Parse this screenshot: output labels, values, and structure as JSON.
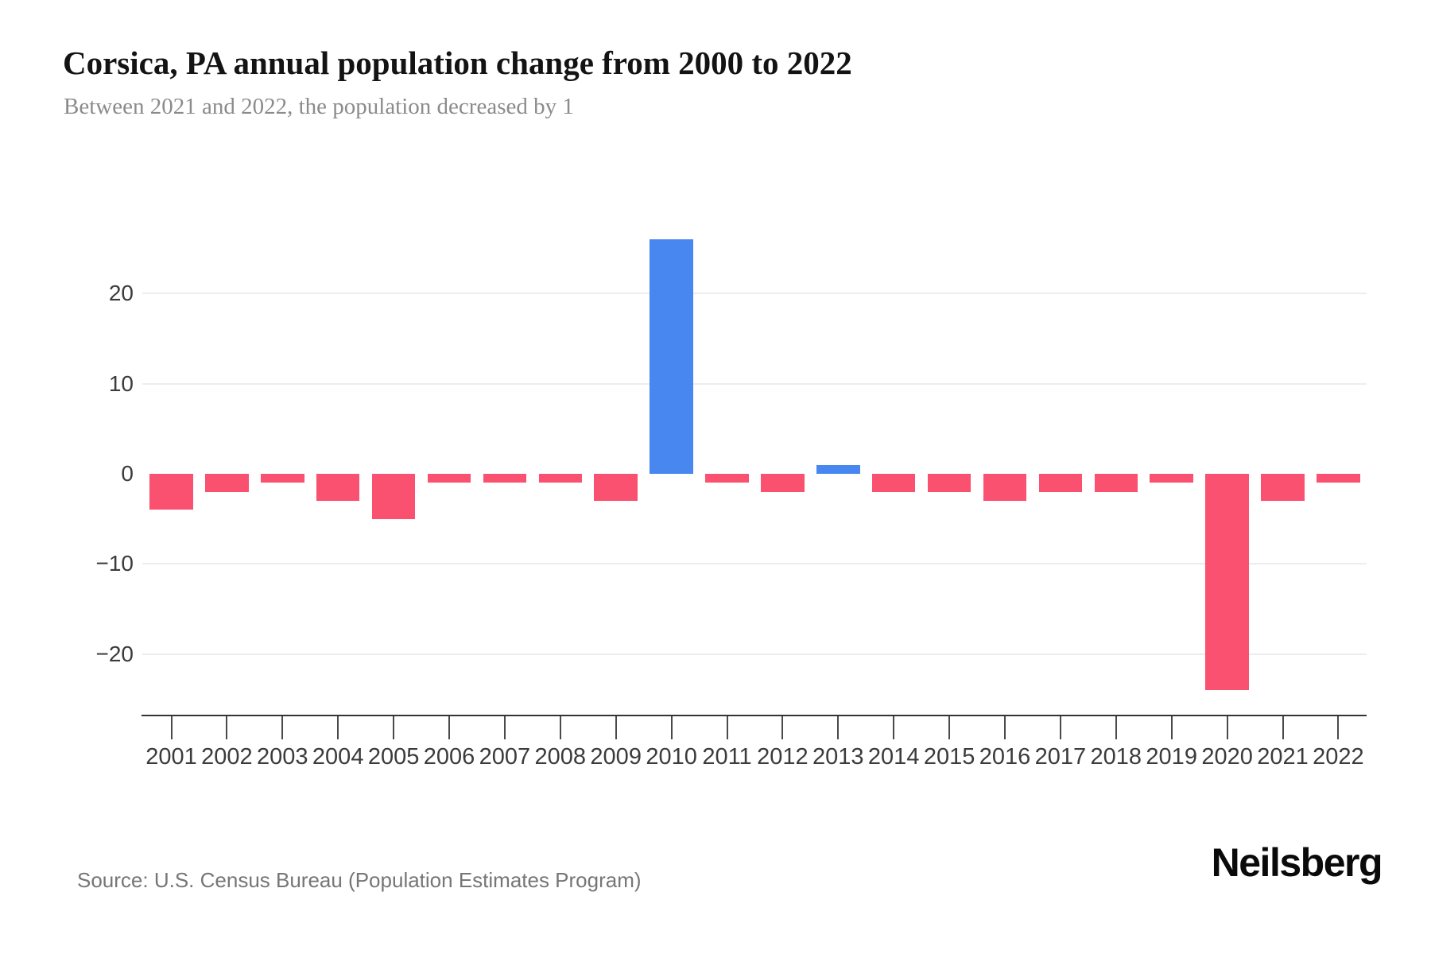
{
  "header": {
    "title": "Corsica, PA annual population change from 2000 to 2022",
    "subtitle": "Between 2021 and 2022, the population decreased by 1"
  },
  "footer": {
    "source": "Source: U.S. Census Bureau (Population Estimates Program)",
    "brand": "Neilsberg"
  },
  "chart_data": {
    "type": "bar",
    "title": "Corsica, PA annual population change from 2000 to 2022",
    "subtitle": "Between 2021 and 2022, the population decreased by 1",
    "categories": [
      "2001",
      "2002",
      "2003",
      "2004",
      "2005",
      "2006",
      "2007",
      "2008",
      "2009",
      "2010",
      "2011",
      "2012",
      "2013",
      "2014",
      "2015",
      "2016",
      "2017",
      "2018",
      "2019",
      "2020",
      "2021",
      "2022"
    ],
    "values": [
      -4,
      -2,
      -1,
      -3,
      -5,
      -1,
      -1,
      -1,
      -3,
      26,
      -1,
      -2,
      1,
      -2,
      -2,
      -3,
      -2,
      -2,
      -1,
      -24,
      -3,
      -1
    ],
    "xlabel": "",
    "ylabel": "",
    "y_ticks": [
      20,
      10,
      0,
      -10,
      -20
    ],
    "y_tick_labels": [
      "20",
      "10",
      "0",
      "−10",
      "−20"
    ],
    "ylim": [
      -27,
      27
    ],
    "grid": "horizontal-light",
    "legend": "none",
    "positive_color": "#4787EF",
    "negative_color": "#FA5170"
  }
}
